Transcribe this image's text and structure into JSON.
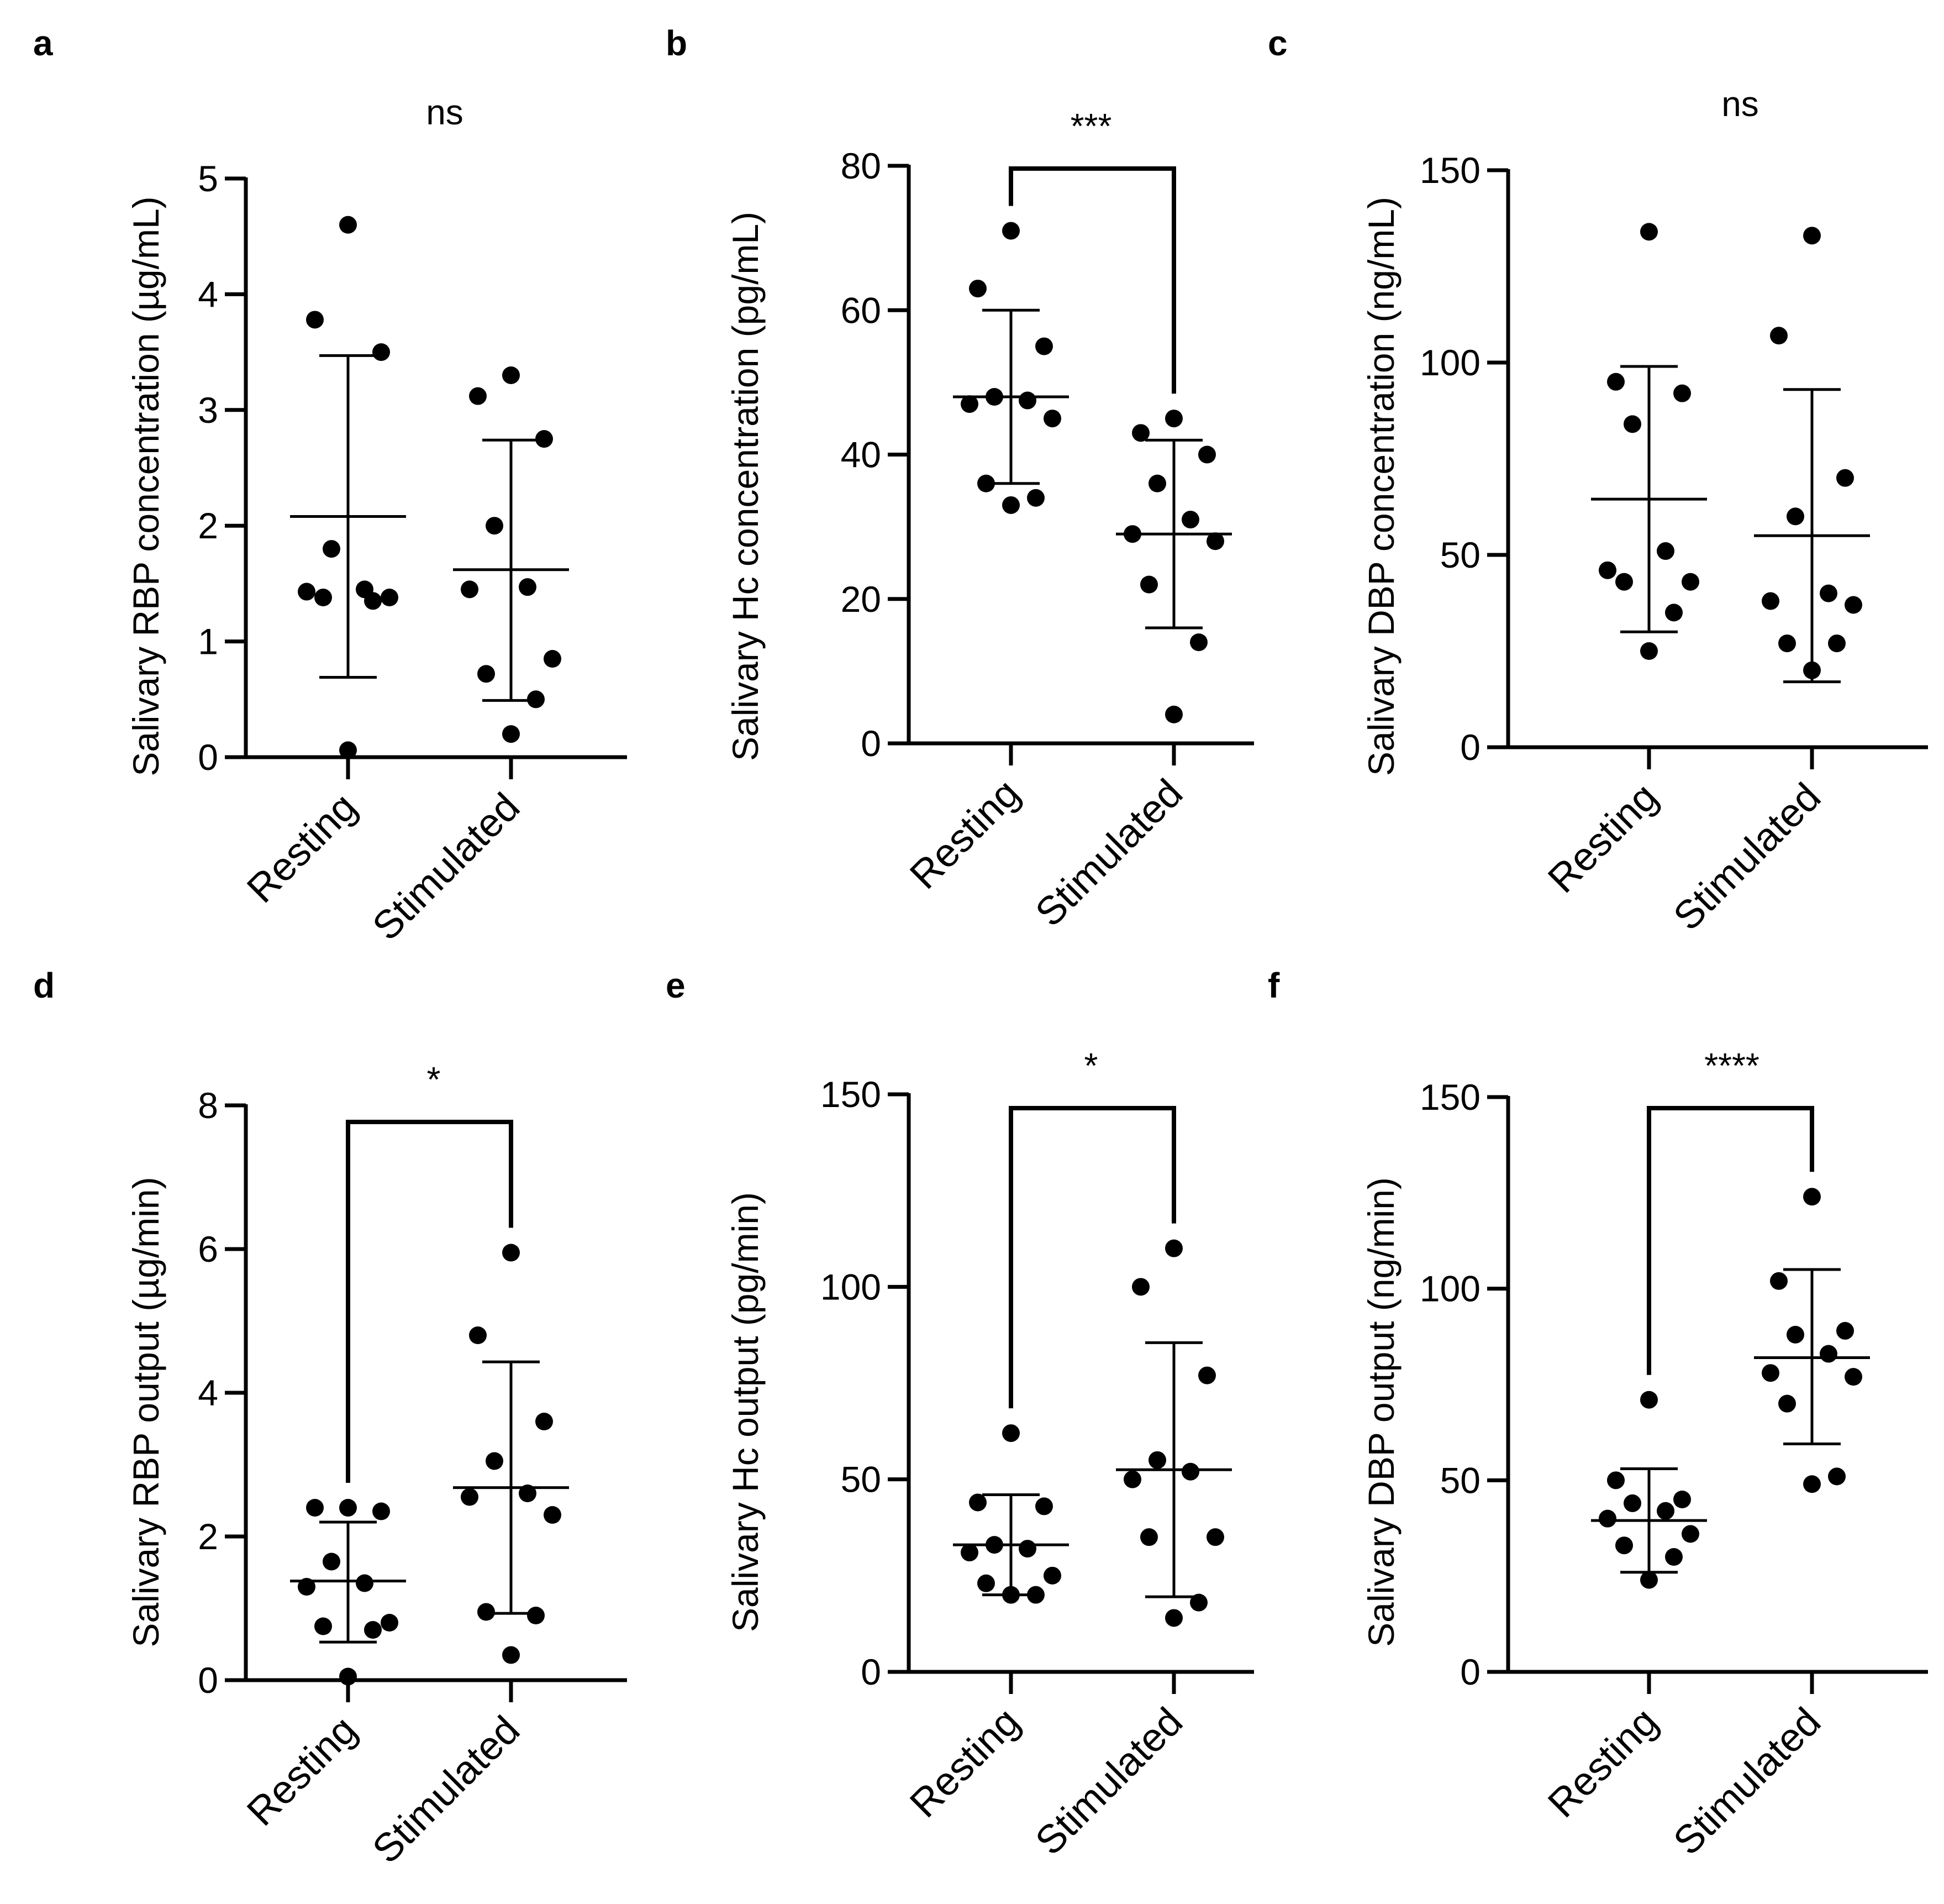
{
  "figure": {
    "background": "#ffffff",
    "point_color": "#000000"
  },
  "chart_data": [
    {
      "panel": "a",
      "type": "scatter",
      "ylabel": "Salivary RBP concentration (µg/mL)",
      "categories": [
        "Resting",
        "Stimulated"
      ],
      "ylim": [
        0,
        5
      ],
      "yticks": [
        0,
        1,
        2,
        3,
        4,
        5
      ],
      "significance": "ns",
      "bracket": false,
      "series": [
        {
          "name": "Resting",
          "values": [
            4.6,
            3.78,
            3.5,
            1.8,
            1.45,
            1.43,
            1.38,
            1.38,
            1.35,
            0.06
          ],
          "mean": 2.08,
          "sd_low": 0.69,
          "sd_high": 3.47
        },
        {
          "name": "Stimulated",
          "values": [
            3.3,
            3.12,
            2.75,
            2.0,
            1.47,
            1.45,
            0.85,
            0.72,
            0.5,
            0.2
          ],
          "mean": 1.62,
          "sd_low": 0.49,
          "sd_high": 2.74
        }
      ]
    },
    {
      "panel": "b",
      "type": "scatter",
      "ylabel": "Salivary Hc concentration (pg/mL)",
      "categories": [
        "Resting",
        "Stimulated"
      ],
      "ylim": [
        0,
        80
      ],
      "yticks": [
        0,
        20,
        40,
        60,
        80
      ],
      "significance": "***",
      "bracket": true,
      "series": [
        {
          "name": "Resting",
          "values": [
            71,
            63,
            55,
            48,
            47.5,
            47,
            45,
            36,
            34,
            33
          ],
          "mean": 48,
          "sd_low": 36,
          "sd_high": 60
        },
        {
          "name": "Stimulated",
          "values": [
            45,
            43,
            40,
            36,
            31,
            29,
            28,
            22,
            14,
            4
          ],
          "mean": 29,
          "sd_low": 16,
          "sd_high": 42
        }
      ]
    },
    {
      "panel": "c",
      "type": "scatter",
      "ylabel": "Salivary DBP concentration (ng/mL)",
      "categories": [
        "Resting",
        "Stimulated"
      ],
      "ylim": [
        0,
        150
      ],
      "yticks": [
        0,
        50,
        100,
        150
      ],
      "significance": "ns",
      "bracket": false,
      "series": [
        {
          "name": "Resting",
          "values": [
            134,
            95,
            92,
            84,
            51,
            46,
            43,
            43,
            35,
            25
          ],
          "mean": 64.5,
          "sd_low": 30,
          "sd_high": 99
        },
        {
          "name": "Stimulated",
          "values": [
            133,
            107,
            70,
            60,
            40,
            38,
            37,
            27,
            27,
            20
          ],
          "mean": 55,
          "sd_low": 17,
          "sd_high": 93
        }
      ]
    },
    {
      "panel": "d",
      "type": "scatter",
      "ylabel": "Salivary RBP output (µg/min)",
      "categories": [
        "Resting",
        "Stimulated"
      ],
      "ylim": [
        0,
        8
      ],
      "yticks": [
        0,
        2,
        4,
        6,
        8
      ],
      "significance": "*",
      "bracket": true,
      "series": [
        {
          "name": "Resting",
          "values": [
            2.4,
            2.4,
            2.35,
            1.65,
            1.35,
            1.3,
            0.8,
            0.75,
            0.7,
            0.05
          ],
          "mean": 1.38,
          "sd_low": 0.53,
          "sd_high": 2.2
        },
        {
          "name": "Stimulated",
          "values": [
            5.95,
            4.8,
            3.6,
            3.05,
            2.6,
            2.55,
            2.3,
            0.95,
            0.9,
            0.35
          ],
          "mean": 2.68,
          "sd_low": 0.93,
          "sd_high": 4.43
        }
      ]
    },
    {
      "panel": "e",
      "type": "scatter",
      "ylabel": "Salivary Hc output (pg/min)",
      "categories": [
        "Resting",
        "Stimulated"
      ],
      "ylim": [
        0,
        150
      ],
      "yticks": [
        0,
        50,
        100,
        150
      ],
      "significance": "*",
      "bracket": true,
      "series": [
        {
          "name": "Resting",
          "values": [
            62,
            44,
            43,
            33,
            32,
            31,
            25,
            23,
            20,
            20
          ],
          "mean": 33,
          "sd_low": 20,
          "sd_high": 46
        },
        {
          "name": "Stimulated",
          "values": [
            110,
            100,
            77,
            55,
            52,
            50,
            35,
            35,
            18,
            14
          ],
          "mean": 52.5,
          "sd_low": 19.5,
          "sd_high": 85.5
        }
      ]
    },
    {
      "panel": "f",
      "type": "scatter",
      "ylabel": "Salivary DBP output (ng/min)",
      "categories": [
        "Resting",
        "Stimulated"
      ],
      "ylim": [
        0,
        150
      ],
      "yticks": [
        0,
        50,
        100,
        150
      ],
      "significance": "****",
      "bracket": true,
      "series": [
        {
          "name": "Resting",
          "values": [
            71,
            50,
            45,
            44,
            42,
            40,
            36,
            33,
            30,
            24
          ],
          "mean": 39.5,
          "sd_low": 26,
          "sd_high": 53
        },
        {
          "name": "Stimulated",
          "values": [
            124,
            102,
            89,
            88,
            83,
            78,
            77,
            70,
            51,
            49
          ],
          "mean": 82,
          "sd_low": 59.5,
          "sd_high": 105
        }
      ]
    }
  ]
}
